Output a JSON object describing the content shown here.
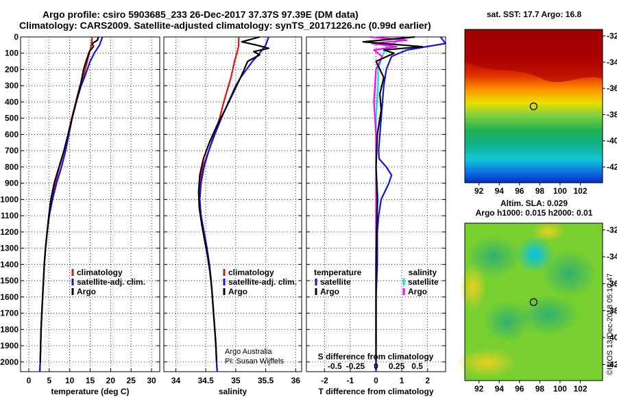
{
  "header": {
    "line1": "Argo profile: csiro 5903685_233 26-Dec-2017 37.37S 97.39E (DM data)",
    "line2": "Climatology: CARS2009. Satellite-adjusted climatology: synTS_20171226.nc (0.99d earlier)"
  },
  "colors": {
    "climatology": "#e01010",
    "satellite": "#1010e0",
    "argo": "#000000",
    "argo_s": "#ff00ff",
    "sat_s": "#00e0e0"
  },
  "depth_axis": {
    "ylim": [
      0,
      2060
    ],
    "ticks": [
      0,
      100,
      200,
      300,
      400,
      500,
      600,
      700,
      800,
      900,
      1000,
      1100,
      1200,
      1300,
      1400,
      1500,
      1600,
      1700,
      1800,
      1900,
      2000
    ],
    "tick_labels": [
      "0",
      "100",
      "200",
      "300",
      "400",
      "500",
      "600",
      "700",
      "800",
      "900",
      "1000",
      "1100",
      "1200",
      "1300",
      "1400",
      "1500",
      "1600",
      "1700",
      "1800",
      "1900",
      "2000"
    ]
  },
  "chart_data": [
    {
      "type": "line",
      "id": "temperature",
      "xlabel": "temperature (deg C)",
      "ylabel": "depth",
      "xlim": [
        -2,
        32
      ],
      "xticks": [
        0,
        5,
        10,
        15,
        20,
        25,
        30
      ],
      "xtick_labels": [
        "0",
        "5",
        "10",
        "15",
        "20",
        "25",
        "30"
      ],
      "legend": [
        "climatology",
        "satellite-adj. clim.",
        "Argo"
      ],
      "series": [
        {
          "name": "climatology",
          "x": [
            15.5,
            15.3,
            14.8,
            14.3,
            13.8,
            13.3,
            12.5,
            11.5,
            10.5,
            9.6,
            8.6,
            7.5,
            6.4,
            5.6,
            5.0,
            4.5,
            4.1,
            3.8,
            3.6,
            3.4,
            3.2,
            3.0,
            2.9,
            2.8,
            2.7
          ],
          "y": [
            0,
            50,
            100,
            150,
            200,
            250,
            300,
            400,
            500,
            600,
            700,
            800,
            900,
            1000,
            1100,
            1200,
            1300,
            1400,
            1500,
            1600,
            1700,
            1800,
            1900,
            2000,
            2060
          ]
        },
        {
          "name": "satellite-adj. clim.",
          "x": [
            18.0,
            17.3,
            16.0,
            15.0,
            14.3,
            13.6,
            12.8,
            11.6,
            10.6,
            9.8,
            9.0,
            8.0,
            6.8,
            5.8,
            5.0,
            4.5,
            4.1,
            3.8,
            3.6,
            3.4,
            3.2,
            3.0,
            2.9,
            2.8,
            2.7
          ],
          "y": [
            0,
            50,
            100,
            150,
            200,
            250,
            300,
            400,
            500,
            600,
            700,
            800,
            900,
            1000,
            1100,
            1200,
            1300,
            1400,
            1500,
            1600,
            1700,
            1800,
            1900,
            2000,
            2060
          ]
        },
        {
          "name": "Argo",
          "x": [
            17.0,
            16.8,
            15.5,
            15.8,
            14.8,
            14.0,
            13.4,
            12.6,
            11.6,
            10.6,
            9.6,
            8.6,
            7.4,
            6.2,
            5.4,
            4.9,
            4.5,
            4.1,
            3.8,
            3.6,
            3.4,
            3.2,
            3.0,
            2.9,
            2.8
          ],
          "y": [
            0,
            20,
            40,
            60,
            90,
            150,
            200,
            300,
            400,
            500,
            600,
            700,
            800,
            900,
            1000,
            1100,
            1200,
            1300,
            1400,
            1500,
            1600,
            1700,
            1800,
            1900,
            2000
          ]
        }
      ]
    },
    {
      "type": "line",
      "id": "salinity",
      "xlabel": "salinity",
      "ylabel": "depth",
      "xlim": [
        33.8,
        36.1
      ],
      "xticks": [
        34,
        34.5,
        35,
        35.5,
        36
      ],
      "xtick_labels": [
        "34",
        "34.5",
        "35",
        "35.5",
        "36"
      ],
      "legend": [
        "climatology",
        "satellite-adj. clim.",
        "Argo"
      ],
      "series": [
        {
          "name": "climatology",
          "x": [
            35.05,
            35.05,
            35.02,
            34.98,
            34.95,
            34.92,
            34.88,
            34.8,
            34.73,
            34.64,
            34.55,
            34.45,
            34.4,
            34.39,
            34.42,
            34.47,
            34.52,
            34.56,
            34.59,
            34.61,
            34.63,
            34.65,
            34.67,
            34.68,
            34.69
          ],
          "y": [
            0,
            50,
            100,
            150,
            200,
            250,
            300,
            400,
            500,
            600,
            700,
            800,
            900,
            1000,
            1100,
            1200,
            1300,
            1400,
            1500,
            1600,
            1700,
            1800,
            1900,
            2000,
            2060
          ]
        },
        {
          "name": "satellite-adj. clim.",
          "x": [
            35.55,
            35.5,
            35.4,
            35.28,
            35.18,
            35.08,
            35.0,
            34.88,
            34.76,
            34.65,
            34.55,
            34.47,
            34.42,
            34.4,
            34.42,
            34.47,
            34.52,
            34.56,
            34.59,
            34.61,
            34.63,
            34.65,
            34.67,
            34.68,
            34.69
          ],
          "y": [
            0,
            50,
            100,
            150,
            200,
            250,
            300,
            400,
            500,
            600,
            700,
            800,
            900,
            1000,
            1100,
            1200,
            1300,
            1400,
            1500,
            1600,
            1700,
            1800,
            1900,
            2000,
            2060
          ]
        },
        {
          "name": "Argo",
          "x": [
            35.4,
            35.1,
            35.35,
            35.55,
            35.3,
            35.4,
            35.2,
            35.08,
            34.95,
            34.82,
            34.68,
            34.56,
            34.46,
            34.4,
            34.38,
            34.39,
            34.43,
            34.48,
            34.53,
            34.57,
            34.6,
            34.62,
            34.64,
            34.66,
            34.68
          ],
          "y": [
            0,
            30,
            50,
            70,
            90,
            110,
            150,
            250,
            350,
            450,
            550,
            650,
            750,
            850,
            950,
            1050,
            1150,
            1250,
            1350,
            1450,
            1550,
            1650,
            1750,
            1850,
            2000
          ]
        }
      ]
    },
    {
      "type": "line",
      "id": "difference",
      "xlabel": "T difference from climatology",
      "xlabel_top": "S difference from climatology",
      "ylabel": "depth",
      "xlim": [
        -2.7,
        2.7
      ],
      "xticks": [
        -2,
        -1,
        0,
        1,
        2
      ],
      "xtick_labels": [
        "-2",
        "-1",
        "0",
        "1",
        "2"
      ],
      "s_ticks": [
        -0.5,
        -0.25,
        0,
        0.25,
        0.5
      ],
      "s_tick_labels": [
        "-0.5",
        "-0.25",
        "0",
        "0.25",
        "0.5"
      ],
      "legend": {
        "temperature_title": "temperature",
        "salinity_title": "salinity",
        "t_satellite": "satellite",
        "t_argo": "Argo",
        "s_satellite": "satellite",
        "s_argo": "Argo"
      },
      "series": [
        {
          "name": "T satellite",
          "x": [
            2.5,
            2.7,
            1.2,
            0.6,
            0.4,
            0.3,
            0.25,
            0.2,
            0.15,
            0.1,
            0.12,
            0.4,
            0.6,
            0.5,
            0.2,
            0.1,
            0.05,
            0.05,
            0.0,
            0.0,
            0.0,
            0.0,
            0.0
          ],
          "y": [
            0,
            40,
            80,
            120,
            200,
            300,
            400,
            500,
            600,
            700,
            750,
            800,
            850,
            900,
            1000,
            1100,
            1200,
            1400,
            1600,
            1800,
            1900,
            2000,
            2060
          ]
        },
        {
          "name": "T Argo",
          "x": [
            1.5,
            -0.5,
            1.8,
            0.3,
            0.7,
            0.0,
            0.3,
            0.15,
            0.2,
            0.05,
            0.0,
            0.05,
            0.02,
            0.0,
            0.0,
            0.0
          ],
          "y": [
            0,
            30,
            60,
            80,
            100,
            150,
            250,
            350,
            450,
            600,
            800,
            1000,
            1200,
            1400,
            1600,
            2000
          ]
        },
        {
          "name": "S satellite",
          "x": [
            1.5,
            0.5,
            0.3,
            0.1,
            0.1,
            0.05,
            0.0,
            0.0,
            0.0,
            0.0,
            0.05,
            0.1,
            0.05,
            0.0,
            0.0,
            0.0
          ],
          "y": [
            0,
            60,
            120,
            200,
            300,
            400,
            500,
            600,
            700,
            800,
            900,
            1000,
            1100,
            1300,
            1500,
            2000
          ]
        },
        {
          "name": "S Argo",
          "x": [
            -0.3,
            1.5,
            -0.2,
            1.0,
            -0.1,
            0.3,
            0.0,
            -0.1,
            0.0,
            0.0,
            0.0,
            0.0,
            0.0,
            0.0
          ],
          "y": [
            0,
            20,
            40,
            60,
            80,
            120,
            200,
            400,
            600,
            800,
            1000,
            1200,
            1500,
            1900
          ]
        }
      ]
    }
  ],
  "maps": {
    "sst": {
      "title": "sat. SST: 17.7 Argo: 16.8",
      "yticks": [
        "-32",
        "-34",
        "-36",
        "-38",
        "-40",
        "-42"
      ],
      "xticks": [
        "92",
        "94",
        "96",
        "98",
        "100",
        "102"
      ],
      "marker": {
        "lon": 97.39,
        "lat": -37.37
      }
    },
    "sla": {
      "title_line1": "Altim. SLA: 0.029",
      "title_line2": "Argo h1000: 0.015 h2000: 0.01",
      "yticks": [
        "-32",
        "-34",
        "-36",
        "-38",
        "-40",
        "-42"
      ],
      "xticks": [
        "92",
        "94",
        "96",
        "98",
        "100",
        "102"
      ],
      "marker": {
        "lon": 97.39,
        "lat": -37.37
      }
    }
  },
  "credits": {
    "line1": "Argo Australia",
    "line2": "PI: Susan Wijffels",
    "stamp": "©IMOS 13-Dec-2018 05:10:47"
  }
}
